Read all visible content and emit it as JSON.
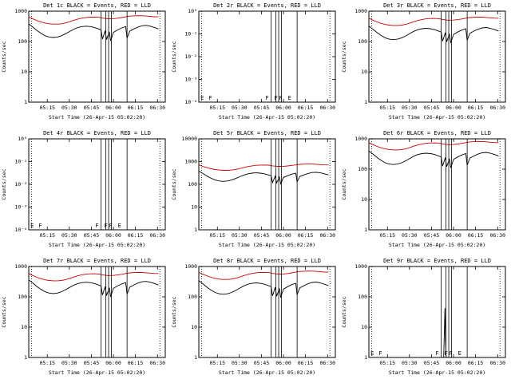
{
  "page": {
    "background": "#ffffff"
  },
  "colors": {
    "events": "#000000",
    "lld": "#cc0000"
  },
  "axis": {
    "xlabel": "Start Time (26-Apr-15 05:02:20)",
    "ylabel": "Counts/sec",
    "xticks": [
      {
        "label": "05:15",
        "f": 0.136
      },
      {
        "label": "05:30",
        "f": 0.297
      },
      {
        "label": "05:45",
        "f": 0.459
      },
      {
        "label": "06:00",
        "f": 0.62
      },
      {
        "label": "06:15",
        "f": 0.781
      },
      {
        "label": "06:30",
        "f": 0.943
      }
    ]
  },
  "base_curves": {
    "x": [
      0.0,
      0.03,
      0.06,
      0.09,
      0.12,
      0.15,
      0.18,
      0.21,
      0.24,
      0.27,
      0.3,
      0.33,
      0.36,
      0.39,
      0.42,
      0.45,
      0.48,
      0.51,
      0.53,
      0.54,
      0.56,
      0.57,
      0.59,
      0.6,
      0.62,
      0.65,
      0.68,
      0.71,
      0.72,
      0.74,
      0.77,
      0.8,
      0.83,
      0.86,
      0.89,
      0.92,
      0.95
    ],
    "events": [
      380,
      300,
      230,
      185,
      155,
      140,
      135,
      140,
      155,
      180,
      215,
      255,
      290,
      310,
      320,
      310,
      290,
      260,
      240,
      120,
      230,
      115,
      210,
      105,
      200,
      240,
      280,
      310,
      130,
      220,
      260,
      300,
      330,
      340,
      320,
      290,
      260
    ],
    "lld": [
      650,
      560,
      490,
      440,
      405,
      385,
      375,
      375,
      385,
      410,
      450,
      500,
      550,
      590,
      620,
      635,
      640,
      630,
      610,
      590,
      575,
      565,
      560,
      560,
      565,
      585,
      615,
      650,
      670,
      685,
      700,
      710,
      705,
      690,
      670,
      655,
      650
    ]
  },
  "chart_data": [
    {
      "name": "det-1c",
      "type": "line",
      "title": "Det 1c BLACK = Events, RED = LLD",
      "ylog": true,
      "ylim": [
        1,
        1000
      ],
      "yticks": [
        {
          "v": 1000,
          "label": "1000"
        },
        {
          "v": 100,
          "label": "100"
        },
        {
          "v": 10,
          "label": "10"
        },
        {
          "v": 1,
          "label": "1"
        }
      ],
      "vlines_solid": [
        0.53,
        0.565,
        0.585,
        0.605,
        0.72
      ],
      "vlines_dotted": [
        0.02,
        0.96
      ],
      "flags": [],
      "series": [
        {
          "name": "Events",
          "color_key": "events",
          "use_base": "events",
          "scale": 1.0
        },
        {
          "name": "LLD",
          "color_key": "lld",
          "use_base": "lld",
          "scale": 1.0
        }
      ]
    },
    {
      "name": "det-2r",
      "type": "line",
      "title": "Det 2r BLACK = Events, RED = LLD",
      "ylog": true,
      "ylim": [
        0.0001,
        1
      ],
      "yticks": [
        {
          "v": 1,
          "label": "10⁰"
        },
        {
          "v": 0.1,
          "label": "10⁻¹"
        },
        {
          "v": 0.01,
          "label": "10⁻²"
        },
        {
          "v": 0.001,
          "label": "10⁻³"
        },
        {
          "v": 0.0001,
          "label": "10⁻⁴"
        }
      ],
      "vlines_solid": [
        0.53,
        0.565,
        0.585,
        0.605,
        0.72
      ],
      "vlines_dotted": [
        0.02,
        0.96
      ],
      "flags": [
        {
          "t": "E",
          "f": 0.025
        },
        {
          "t": "F",
          "f": 0.085
        },
        {
          "t": "F",
          "f": 0.5
        },
        {
          "t": "F",
          "f": 0.565
        },
        {
          "t": "F",
          "f": 0.6
        },
        {
          "t": "E",
          "f": 0.665
        }
      ],
      "series": []
    },
    {
      "name": "det-3r",
      "type": "line",
      "title": "Det 3r BLACK = Events, RED = LLD",
      "ylog": true,
      "ylim": [
        1,
        1000
      ],
      "yticks": [
        {
          "v": 1000,
          "label": "1000"
        },
        {
          "v": 100,
          "label": "100"
        },
        {
          "v": 10,
          "label": "10"
        },
        {
          "v": 1,
          "label": "1"
        }
      ],
      "vlines_solid": [
        0.53,
        0.565,
        0.585,
        0.605,
        0.72
      ],
      "vlines_dotted": [
        0.02,
        0.96
      ],
      "flags": [],
      "series": [
        {
          "name": "Events",
          "color_key": "events",
          "use_base": "events",
          "scale": 0.85
        },
        {
          "name": "LLD",
          "color_key": "lld",
          "use_base": "lld",
          "scale": 0.9
        }
      ]
    },
    {
      "name": "det-4r",
      "type": "line",
      "title": "Det 4r BLACK = Events, RED = LLD",
      "ylog": true,
      "ylim": [
        0.0001,
        1
      ],
      "yticks": [
        {
          "v": 1,
          "label": "10⁰"
        },
        {
          "v": 0.1,
          "label": "10⁻¹"
        },
        {
          "v": 0.01,
          "label": "10⁻²"
        },
        {
          "v": 0.001,
          "label": "10⁻³"
        },
        {
          "v": 0.0001,
          "label": "10⁻⁴"
        }
      ],
      "vlines_solid": [
        0.53,
        0.565,
        0.585,
        0.605,
        0.72
      ],
      "vlines_dotted": [
        0.02,
        0.96
      ],
      "flags": [
        {
          "t": "E",
          "f": 0.025
        },
        {
          "t": "F",
          "f": 0.085
        },
        {
          "t": "F",
          "f": 0.5
        },
        {
          "t": "F",
          "f": 0.565
        },
        {
          "t": "F",
          "f": 0.6
        },
        {
          "t": "E",
          "f": 0.665
        }
      ],
      "series": []
    },
    {
      "name": "det-5r",
      "type": "line",
      "title": "Det 5r BLACK = Events, RED = LLD",
      "ylog": true,
      "ylim": [
        1,
        10000
      ],
      "yticks": [
        {
          "v": 10000,
          "label": "10000"
        },
        {
          "v": 1000,
          "label": "1000"
        },
        {
          "v": 100,
          "label": "100"
        },
        {
          "v": 10,
          "label": "10"
        },
        {
          "v": 1,
          "label": "1"
        }
      ],
      "vlines_solid": [
        0.53,
        0.565,
        0.585,
        0.605,
        0.72
      ],
      "vlines_dotted": [
        0.02,
        0.96
      ],
      "flags": [],
      "series": [
        {
          "name": "Events",
          "color_key": "events",
          "use_base": "events",
          "scale": 1.0
        },
        {
          "name": "LLD",
          "color_key": "lld",
          "use_base": "lld",
          "scale": 1.1
        }
      ]
    },
    {
      "name": "det-6r",
      "type": "line",
      "title": "Det 6r BLACK = Events, RED = LLD",
      "ylog": true,
      "ylim": [
        1,
        1000
      ],
      "yticks": [
        {
          "v": 1000,
          "label": "1000"
        },
        {
          "v": 100,
          "label": "100"
        },
        {
          "v": 10,
          "label": "10"
        },
        {
          "v": 1,
          "label": "1"
        }
      ],
      "vlines_solid": [
        0.53,
        0.565,
        0.585,
        0.605,
        0.72
      ],
      "vlines_dotted": [
        0.02,
        0.96
      ],
      "flags": [],
      "series": [
        {
          "name": "Events",
          "color_key": "events",
          "use_base": "events",
          "scale": 1.05
        },
        {
          "name": "LLD",
          "color_key": "lld",
          "use_base": "lld",
          "scale": 1.15
        }
      ]
    },
    {
      "name": "det-7r",
      "type": "line",
      "title": "Det 7r BLACK = Events, RED = LLD",
      "ylog": true,
      "ylim": [
        1,
        1000
      ],
      "yticks": [
        {
          "v": 1000,
          "label": "1000"
        },
        {
          "v": 100,
          "label": "100"
        },
        {
          "v": 10,
          "label": "10"
        },
        {
          "v": 1,
          "label": "1"
        }
      ],
      "vlines_solid": [
        0.53,
        0.565,
        0.585,
        0.605,
        0.72
      ],
      "vlines_dotted": [
        0.02,
        0.96
      ],
      "flags": [],
      "series": [
        {
          "name": "Events",
          "color_key": "events",
          "use_base": "events",
          "scale": 0.95
        },
        {
          "name": "LLD",
          "color_key": "lld",
          "use_base": "lld",
          "scale": 0.9
        }
      ]
    },
    {
      "name": "det-8r",
      "type": "line",
      "title": "Det 8r BLACK = Events, RED = LLD",
      "ylog": true,
      "ylim": [
        1,
        1000
      ],
      "yticks": [
        {
          "v": 1000,
          "label": "1000"
        },
        {
          "v": 100,
          "label": "100"
        },
        {
          "v": 10,
          "label": "10"
        },
        {
          "v": 1,
          "label": "1"
        }
      ],
      "vlines_solid": [
        0.53,
        0.565,
        0.585,
        0.605,
        0.72
      ],
      "vlines_dotted": [
        0.02,
        0.96
      ],
      "flags": [],
      "series": [
        {
          "name": "Events",
          "color_key": "events",
          "use_base": "events",
          "scale": 0.9
        },
        {
          "name": "LLD",
          "color_key": "lld",
          "use_base": "lld",
          "scale": 1.0
        }
      ]
    },
    {
      "name": "det-9r",
      "type": "line",
      "title": "Det 9r BLACK = Events, RED = LLD",
      "ylog": true,
      "ylim": [
        1,
        1000
      ],
      "yticks": [
        {
          "v": 1000,
          "label": "1000"
        },
        {
          "v": 100,
          "label": "100"
        },
        {
          "v": 10,
          "label": "10"
        },
        {
          "v": 1,
          "label": "1"
        }
      ],
      "vlines_solid": [
        0.53,
        0.565,
        0.585,
        0.605,
        0.72
      ],
      "vlines_dotted": [
        0.02,
        0.96
      ],
      "flags": [
        {
          "t": "E",
          "f": 0.025
        },
        {
          "t": "F",
          "f": 0.085
        },
        {
          "t": "F",
          "f": 0.5
        },
        {
          "t": "F",
          "f": 0.565
        },
        {
          "t": "F",
          "f": 0.6
        },
        {
          "t": "E",
          "f": 0.665
        }
      ],
      "series": [
        {
          "name": "Events",
          "color_key": "events",
          "x": [
            0.548,
            0.553,
            0.557,
            0.561,
            0.566
          ],
          "y": [
            1,
            8,
            42,
            5,
            1
          ]
        }
      ]
    }
  ]
}
